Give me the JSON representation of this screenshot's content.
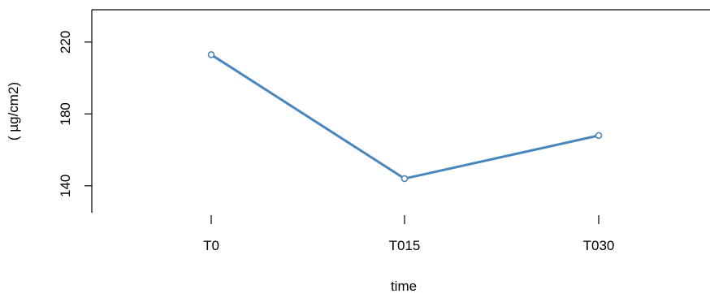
{
  "chart_data": {
    "type": "line",
    "title": "",
    "xlabel": "time",
    "ylabel": "( µg/cm2)",
    "categories": [
      "T0",
      "T015",
      "T030"
    ],
    "series": [
      {
        "values": [
          213,
          144,
          168
        ],
        "color": "#4A86BE"
      }
    ],
    "ylim": [
      125,
      238
    ],
    "yticks": [
      140,
      180,
      220
    ],
    "grid": false,
    "legend": "none",
    "frame": "open (left and top sides drawn)"
  }
}
